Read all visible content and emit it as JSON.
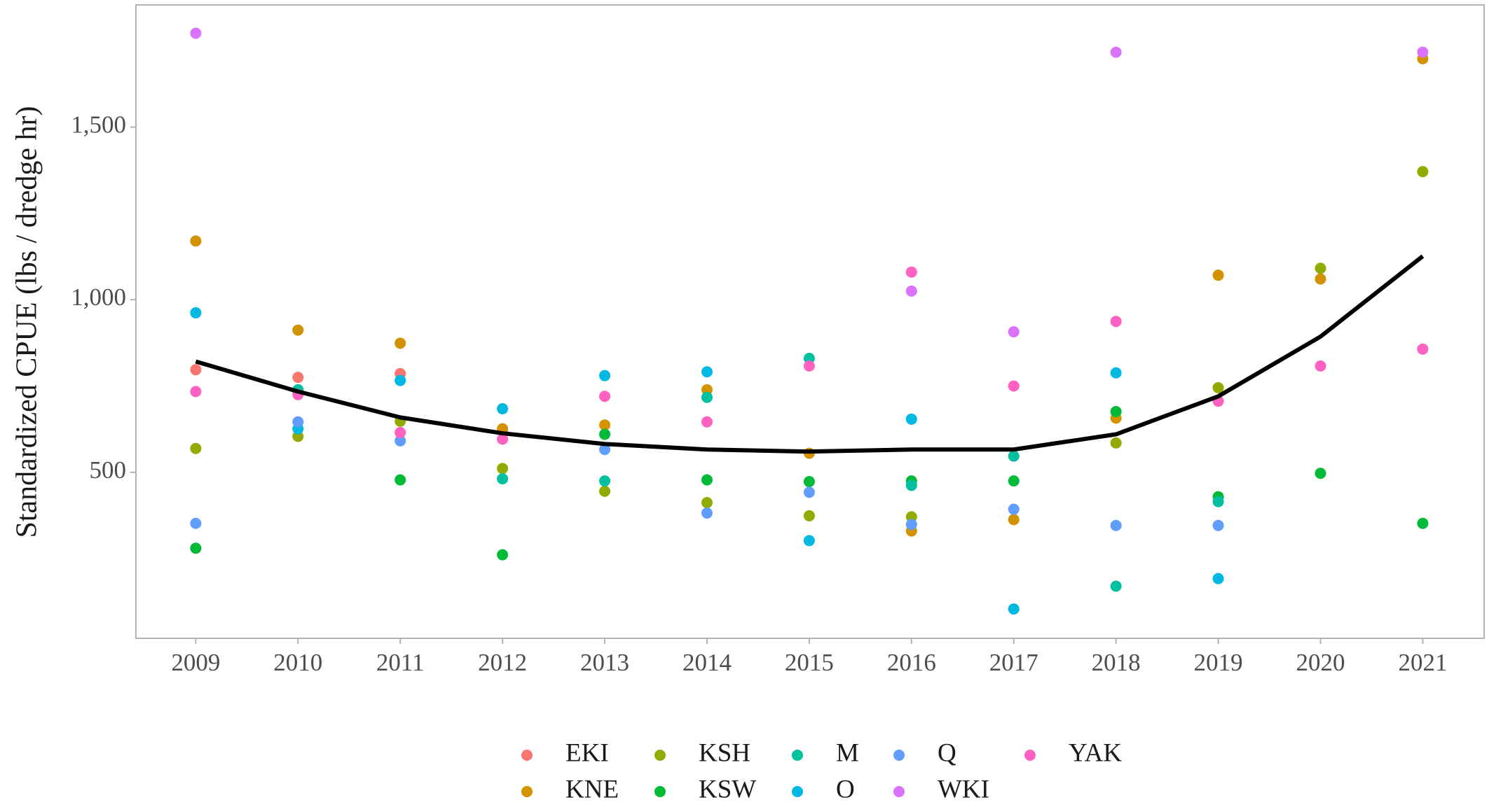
{
  "chart_data": {
    "type": "scatter",
    "y_label": "Standardized CPUE (lbs / dredge hr)",
    "x": [
      2009,
      2010,
      2011,
      2012,
      2013,
      2014,
      2015,
      2016,
      2017,
      2018,
      2019,
      2020,
      2021
    ],
    "xlim": [
      2008.415,
      2021.6
    ],
    "xticks": [
      2009,
      2010,
      2011,
      2012,
      2013,
      2014,
      2015,
      2016,
      2017,
      2018,
      2019,
      2020,
      2021
    ],
    "ylim": [
      19,
      1854
    ],
    "yticks": [
      500,
      {
        "value": 1000,
        "label": "1,000"
      },
      {
        "value": 1500,
        "label": "1,500"
      }
    ],
    "grid": false,
    "legend": "bottom",
    "series": [
      {
        "name": "EKI",
        "color": "#F8766D",
        "values": [
          797,
          775,
          786,
          621,
          null,
          null,
          null,
          null,
          null,
          null,
          null,
          null,
          null
        ]
      },
      {
        "name": "KNE",
        "color": "#D39200",
        "values": [
          1170,
          912,
          874,
          626,
          637,
          739,
          555,
          330,
          363,
          657,
          1071,
          1060,
          1698
        ]
      },
      {
        "name": "KSH",
        "color": "#93AA00",
        "values": [
          569,
          604,
          648,
          511,
          445,
          412,
          374,
          371,
          null,
          585,
          745,
          1091,
          1371
        ]
      },
      {
        "name": "KSW",
        "color": "#00BA38",
        "values": [
          280,
          735,
          478,
          261,
          610,
          478,
          473,
          475,
          475,
          676,
          429,
          497,
          352
        ]
      },
      {
        "name": "M",
        "color": "#00C19F",
        "values": [
          null,
          739,
          null,
          481,
          475,
          717,
          830,
          462,
          547,
          170,
          415,
          null,
          null
        ]
      },
      {
        "name": "O",
        "color": "#00B9E3",
        "values": [
          962,
          626,
          766,
          684,
          780,
          791,
          302,
          654,
          104,
          788,
          192,
          null,
          null
        ]
      },
      {
        "name": "Q",
        "color": "#619CFF",
        "values": [
          352,
          646,
          591,
          null,
          566,
          382,
          442,
          349,
          393,
          346,
          346,
          null,
          null
        ]
      },
      {
        "name": "WKI",
        "color": "#DB72FB",
        "values": [
          1772,
          null,
          null,
          null,
          null,
          null,
          null,
          1025,
          907,
          1717,
          null,
          null,
          1717
        ]
      },
      {
        "name": "YAK",
        "color": "#FF61C3",
        "values": [
          734,
          725,
          615,
          596,
          720,
          646,
          808,
          1080,
          750,
          937,
          706,
          808,
          857
        ]
      }
    ],
    "trend": {
      "color": "#000000",
      "values": [
        821,
        734,
        659,
        613,
        582,
        566,
        560,
        566,
        566,
        610,
        720,
        893,
        1126
      ]
    }
  }
}
